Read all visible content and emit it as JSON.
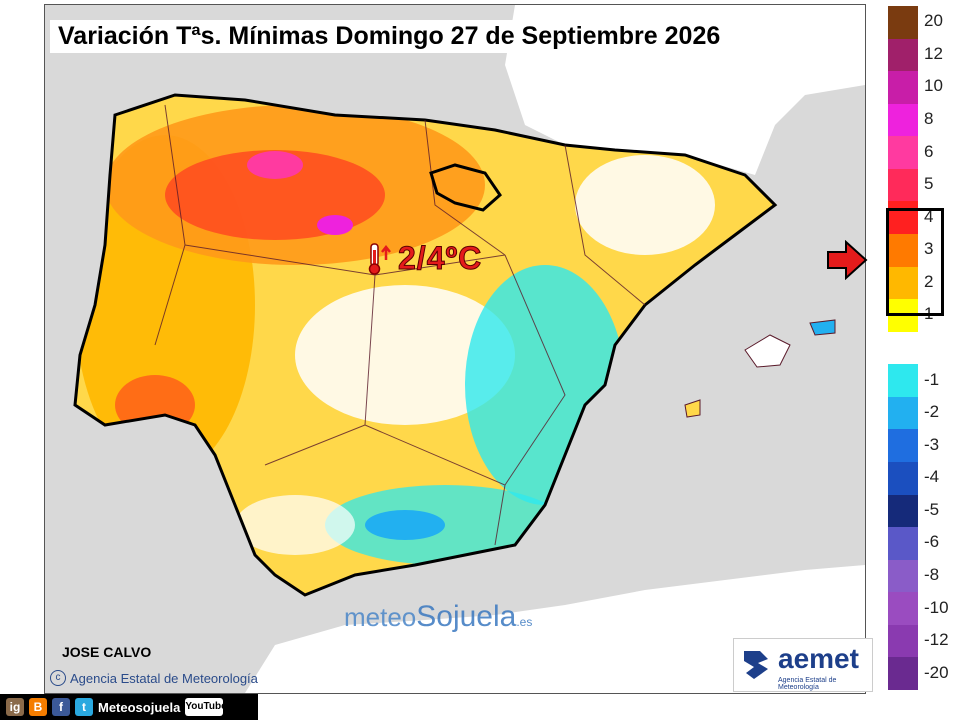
{
  "title": "Variación Tªs. Mínimas Domingo 27 de Septiembre 2026",
  "callout": {
    "text": "2/4ºC",
    "icon": "thermometer-up-icon"
  },
  "author": "JOSE CALVO",
  "copyright": "Agencia Estatal de Meteorología",
  "watermark": {
    "part1": "meteo",
    "part2": "Sojuela",
    "part3": ".es"
  },
  "aemet": {
    "name": "aemet",
    "subtitle": "Agencia Estatal de Meteorología"
  },
  "legend": {
    "items": [
      {
        "label": "20",
        "color": "#7a3b10"
      },
      {
        "label": "12",
        "color": "#a0206a"
      },
      {
        "label": "10",
        "color": "#c81ea8"
      },
      {
        "label": "8",
        "color": "#ee22dd"
      },
      {
        "label": "6",
        "color": "#ff3aa0"
      },
      {
        "label": "5",
        "color": "#ff2a5a"
      },
      {
        "label": "4",
        "color": "#ff2020"
      },
      {
        "label": "3",
        "color": "#ff7a00"
      },
      {
        "label": "2",
        "color": "#ffb800"
      },
      {
        "label": "1",
        "color": "#ffff00"
      },
      {
        "label": "",
        "color": "#ffffff"
      },
      {
        "label": "-1",
        "color": "#2ee8ee"
      },
      {
        "label": "-2",
        "color": "#22b0f0"
      },
      {
        "label": "-3",
        "color": "#1f6ee0"
      },
      {
        "label": "-4",
        "color": "#1b4fbf"
      },
      {
        "label": "-5",
        "color": "#152a7a"
      },
      {
        "label": "-6",
        "color": "#5a58c8"
      },
      {
        "label": "-8",
        "color": "#8a5cc8"
      },
      {
        "label": "-10",
        "color": "#9a4cc0"
      },
      {
        "label": "-12",
        "color": "#8a3ab0"
      },
      {
        "label": "-20",
        "color": "#6a2a90"
      }
    ],
    "highlighted": [
      "4",
      "3",
      "2"
    ]
  },
  "social": {
    "handle": "Meteosojuela",
    "youtube": "YouTube",
    "instagram": "ig",
    "blogger": "B",
    "facebook": "f",
    "twitter": "t"
  }
}
